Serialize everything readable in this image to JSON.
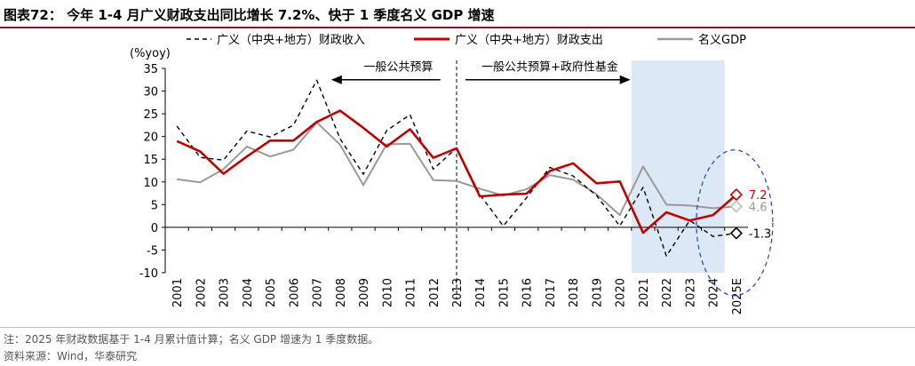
{
  "header": {
    "title": "图表72：  今年 1-4 月广义财政支出同比增长 7.2%、快于 1 季度名义 GDP 增速"
  },
  "footer": {
    "note": "注：2025 年财政数据基于 1-4 月累计值计算；名义 GDP 增速为 1 季度数据。",
    "source": "资料来源：Wind，华泰研究"
  },
  "chart_data": {
    "type": "line",
    "ylabel": "(%yoy)",
    "ylim": [
      -10,
      35
    ],
    "yticks": [
      -10,
      -5,
      0,
      5,
      10,
      15,
      20,
      25,
      30,
      35
    ],
    "categories": [
      "2001",
      "2002",
      "2003",
      "2004",
      "2005",
      "2006",
      "2007",
      "2008",
      "2009",
      "2010",
      "2011",
      "2012",
      "2013",
      "2014",
      "2015",
      "2016",
      "2017",
      "2018",
      "2019",
      "2020",
      "2021",
      "2022",
      "2023",
      "2024",
      "2025E"
    ],
    "series": [
      {
        "name": "广义（中央+地方）财政收入",
        "color": "#000000",
        "style": "dashed",
        "values": [
          22.3,
          15.4,
          14.8,
          21.2,
          19.9,
          22.5,
          32.4,
          19.5,
          11.7,
          21.3,
          24.8,
          12.8,
          17.5,
          7.2,
          0.3,
          6.5,
          13.2,
          11.3,
          7.0,
          0.3,
          8.8,
          -6.3,
          1.5,
          -2.0,
          -1.3
        ]
      },
      {
        "name": "广义（中央+地方）财政支出",
        "color": "#c00000",
        "style": "solid",
        "values": [
          19.0,
          16.7,
          11.8,
          15.6,
          19.1,
          19.1,
          23.2,
          25.7,
          21.9,
          17.8,
          21.6,
          15.3,
          17.4,
          6.8,
          7.2,
          7.4,
          12.4,
          14.1,
          9.7,
          10.1,
          -1.2,
          3.3,
          1.5,
          2.7,
          7.2
        ]
      },
      {
        "name": "名义GDP",
        "color": "#999999",
        "style": "solid",
        "values": [
          10.6,
          9.9,
          12.8,
          17.8,
          15.6,
          17.1,
          23.1,
          18.2,
          9.3,
          18.3,
          18.4,
          10.4,
          10.2,
          8.5,
          7.0,
          8.4,
          11.5,
          10.5,
          7.3,
          2.7,
          13.4,
          5.0,
          4.8,
          4.2,
          4.6
        ]
      }
    ],
    "end_labels": [
      "7.2",
      "4.6",
      "-1.3"
    ],
    "annotations": {
      "left_period": "一般公共预算",
      "right_period": "一般公共预算+政府性基金"
    },
    "legend_position": "top",
    "grid": false
  }
}
